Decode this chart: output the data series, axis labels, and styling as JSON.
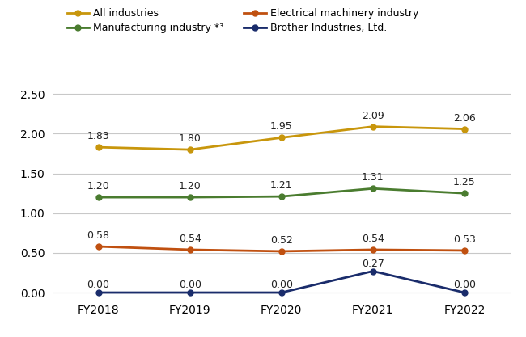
{
  "x_labels": [
    "FY2018",
    "FY2019",
    "FY2020",
    "FY2021",
    "FY2022"
  ],
  "series": [
    {
      "label": "All industries",
      "values": [
        1.83,
        1.8,
        1.95,
        2.09,
        2.06
      ],
      "color": "#C8960C",
      "marker": "o",
      "linewidth": 2.0
    },
    {
      "label": "Manufacturing industry *³",
      "values": [
        1.2,
        1.2,
        1.21,
        1.31,
        1.25
      ],
      "color": "#4A7C2F",
      "marker": "o",
      "linewidth": 2.0
    },
    {
      "label": "Electrical machinery industry",
      "values": [
        0.58,
        0.54,
        0.52,
        0.54,
        0.53
      ],
      "color": "#C05010",
      "marker": "o",
      "linewidth": 2.0
    },
    {
      "label": "Brother Industries, Ltd.",
      "values": [
        0.0,
        0.0,
        0.0,
        0.27,
        0.0
      ],
      "color": "#1A2C6B",
      "marker": "o",
      "linewidth": 2.0
    }
  ],
  "annotation_offsets": [
    [
      0.07,
      0.07,
      0.07,
      0.07,
      0.07
    ],
    [
      0.07,
      0.07,
      0.07,
      0.07,
      0.07
    ],
    [
      0.07,
      0.07,
      0.07,
      0.07,
      0.07
    ],
    [
      0.03,
      0.03,
      0.03,
      0.03,
      0.03
    ]
  ],
  "ylim": [
    -0.05,
    2.75
  ],
  "yticks": [
    0.0,
    0.5,
    1.0,
    1.5,
    2.0,
    2.5
  ],
  "ytick_labels": [
    "0.00",
    "0.50",
    "1.00",
    "1.50",
    "2.00",
    "2.50"
  ],
  "background_color": "#ffffff",
  "grid_color": "#c8c8c8",
  "legend_fontsize": 9,
  "annotation_fontsize": 9
}
